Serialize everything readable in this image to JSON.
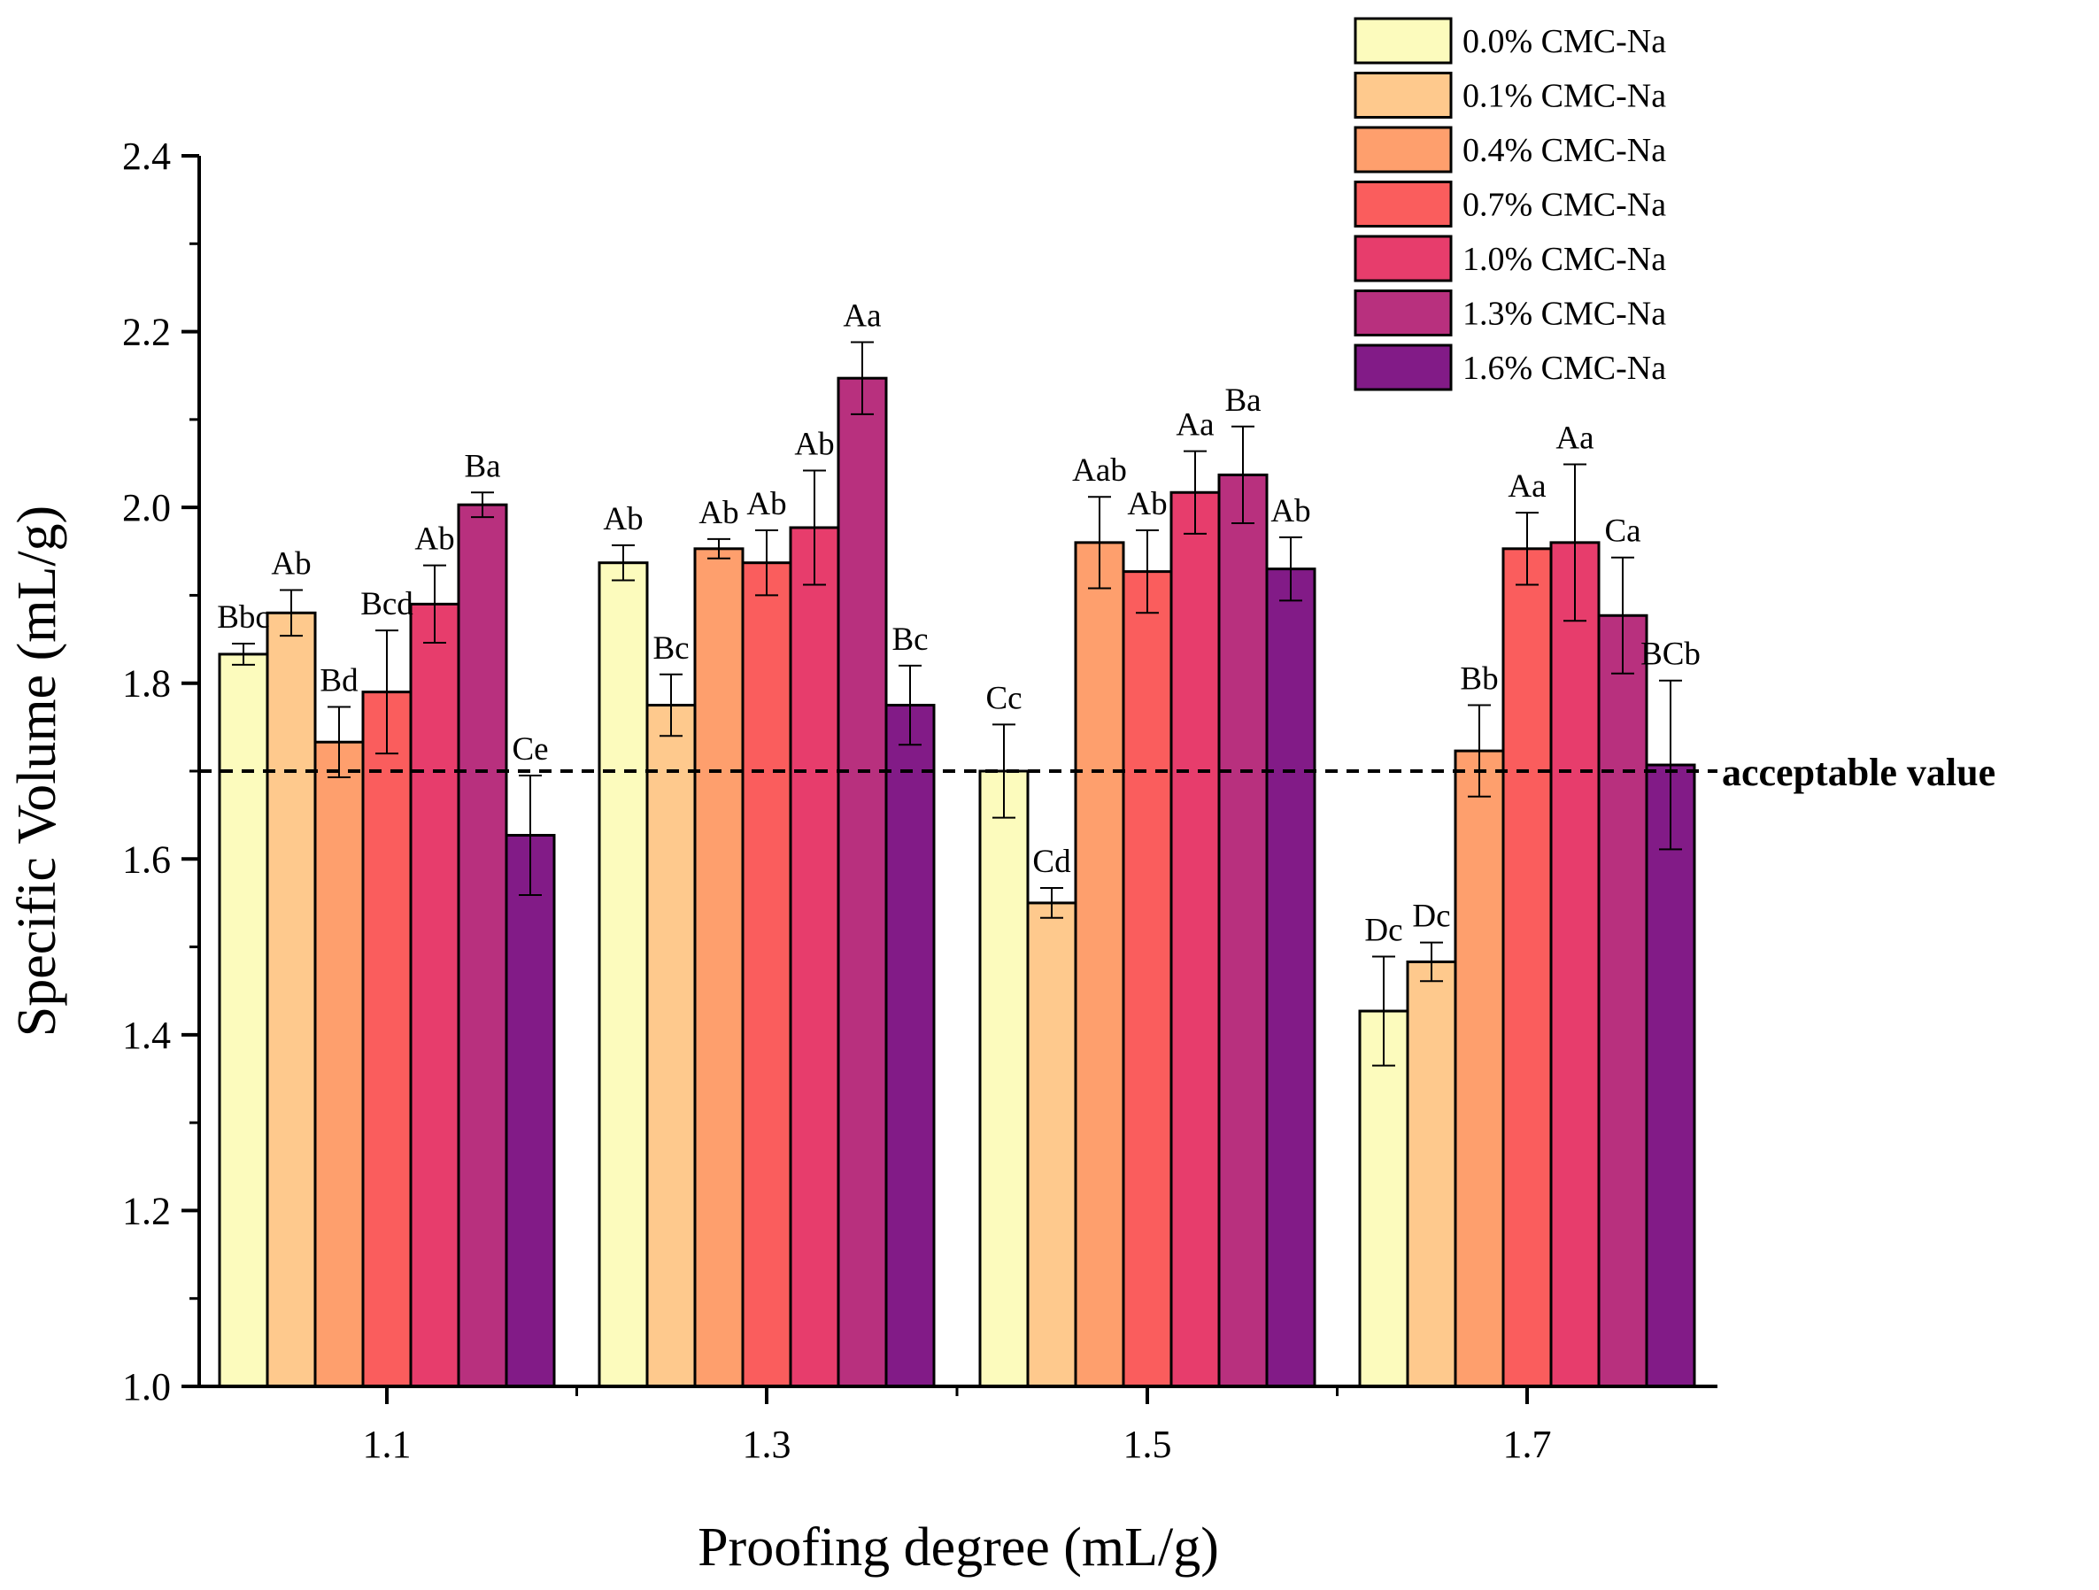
{
  "chart_data": {
    "type": "bar",
    "title": "",
    "xlabel": "Proofing degree (mL/g)",
    "ylabel": "Specific Volume (mL/g)",
    "ylim": [
      1.0,
      2.4
    ],
    "yticks": [
      "1.0",
      "1.2",
      "1.4",
      "1.6",
      "1.8",
      "2.0",
      "2.2",
      "2.4"
    ],
    "categories": [
      "1.1",
      "1.3",
      "1.5",
      "1.7"
    ],
    "legend_position": "top-right",
    "grid": false,
    "series": [
      {
        "name": "0.0% CMC-Na",
        "color": "#fcfbbd",
        "values": [
          1.833,
          1.937,
          1.7,
          1.427
        ],
        "errors": [
          0.012,
          0.02,
          0.053,
          0.062
        ],
        "labels": [
          "Bbc",
          "Ab",
          "Cc",
          "Dc"
        ]
      },
      {
        "name": "0.1% CMC-Na",
        "color": "#fec98d",
        "values": [
          1.88,
          1.775,
          1.55,
          1.483
        ],
        "errors": [
          0.026,
          0.035,
          0.017,
          0.022
        ],
        "labels": [
          "Ab",
          "Bc",
          "Cd",
          "Dc"
        ]
      },
      {
        "name": "0.4% CMC-Na",
        "color": "#fe9f6d",
        "values": [
          1.733,
          1.953,
          1.96,
          1.723
        ],
        "errors": [
          0.04,
          0.011,
          0.052,
          0.052
        ],
        "labels": [
          "Bd",
          "Ab",
          "Aab",
          "Bb"
        ]
      },
      {
        "name": "0.7% CMC-Na",
        "color": "#fa5d5d",
        "values": [
          1.79,
          1.937,
          1.927,
          1.953
        ],
        "errors": [
          0.07,
          0.037,
          0.047,
          0.041
        ],
        "labels": [
          "Bcd",
          "Ab",
          "Ab",
          "Aa"
        ]
      },
      {
        "name": "1.0% CMC-Na",
        "color": "#e73d6c",
        "values": [
          1.89,
          1.977,
          2.017,
          1.96
        ],
        "errors": [
          0.044,
          0.065,
          0.047,
          0.089
        ],
        "labels": [
          "Ab",
          "Ab",
          "Aa",
          "Aa"
        ]
      },
      {
        "name": "1.3% CMC-Na",
        "color": "#b8307e",
        "values": [
          2.003,
          2.147,
          2.037,
          1.877
        ],
        "errors": [
          0.014,
          0.041,
          0.055,
          0.066
        ],
        "labels": [
          "Ba",
          "Aa",
          "Ba",
          "Ca"
        ]
      },
      {
        "name": "1.6% CMC-Na",
        "color": "#821b87",
        "values": [
          1.627,
          1.775,
          1.93,
          1.707
        ],
        "errors": [
          0.068,
          0.045,
          0.036,
          0.096
        ],
        "labels": [
          "Ce",
          "Bc",
          "Ab",
          "BCb"
        ]
      }
    ],
    "reference_line": {
      "value": 1.7,
      "label": "acceptable value",
      "style": "dashed"
    }
  }
}
